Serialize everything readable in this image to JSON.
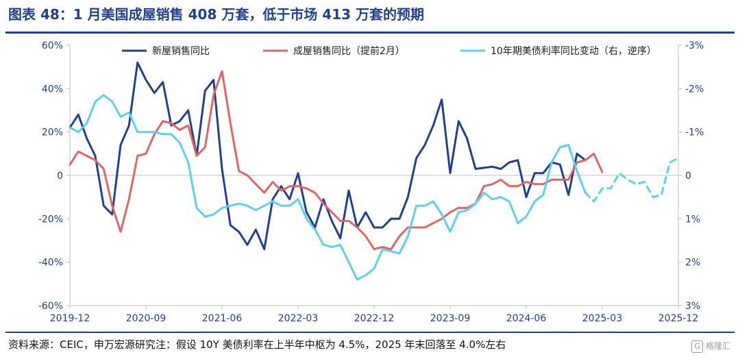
{
  "page": {
    "title": "图表 48：1 月美国成屋销售 408 万套，低于市场 413 万套的预期",
    "source": "资料来源：CEIC，申万宏源研究注：假设 10Y 美债利率在上半年中枢为 4.5%，2025 年末回落至 4.0%左右",
    "watermark_text": "格隆汇",
    "watermark_icon": "G-logo-icon"
  },
  "chart_data": {
    "type": "line",
    "title": "图表 48：1 月美国成屋销售 408 万套，低于市场 413 万套的预期",
    "x_start": "2019-12",
    "x_end": "2025-12",
    "x_tick_labels": [
      "2019-12",
      "2020-09",
      "2021-06",
      "2022-03",
      "2022-12",
      "2023-09",
      "2024-06",
      "2025-03",
      "2025-12"
    ],
    "y_left": {
      "min": -60,
      "max": 60,
      "ticks": [
        60,
        40,
        20,
        0,
        -20,
        -40,
        -60
      ],
      "tick_labels": [
        "60%",
        "40%",
        "20%",
        "0",
        "-20%",
        "-40%",
        "-60%"
      ]
    },
    "y_right": {
      "min": -3,
      "max": 3,
      "reversed": true,
      "ticks": [
        -3,
        -2,
        -1,
        0,
        1,
        2,
        3
      ],
      "tick_labels": [
        "-3%",
        "-2%",
        "-1%",
        "0",
        "1%",
        "2%",
        "3%"
      ]
    },
    "legend_position": "top",
    "grid": false,
    "series": [
      {
        "name": "新屋销售同比",
        "axis": "left",
        "color": "#1f3f8f",
        "dashed": false,
        "x": [
          "2019-12",
          "2020-01",
          "2020-02",
          "2020-03",
          "2020-04",
          "2020-05",
          "2020-06",
          "2020-07",
          "2020-08",
          "2020-09",
          "2020-10",
          "2020-11",
          "2020-12",
          "2021-01",
          "2021-02",
          "2021-03",
          "2021-04",
          "2021-05",
          "2021-06",
          "2021-07",
          "2021-08",
          "2021-09",
          "2021-10",
          "2021-11",
          "2021-12",
          "2022-01",
          "2022-02",
          "2022-03",
          "2022-04",
          "2022-05",
          "2022-06",
          "2022-07",
          "2022-08",
          "2022-09",
          "2022-10",
          "2022-11",
          "2022-12",
          "2023-01",
          "2023-02",
          "2023-03",
          "2023-04",
          "2023-05",
          "2023-06",
          "2023-07",
          "2023-08",
          "2023-09",
          "2023-10",
          "2023-11",
          "2023-12",
          "2024-01",
          "2024-02",
          "2024-03",
          "2024-04",
          "2024-05",
          "2024-06",
          "2024-07",
          "2024-08",
          "2024-09",
          "2024-10",
          "2024-11",
          "2024-12",
          "2025-01"
        ],
        "y": [
          22,
          28,
          17,
          9,
          -14,
          -18,
          14,
          23,
          52,
          44,
          38,
          43,
          23,
          25,
          30,
          9,
          39,
          44,
          3,
          -23,
          -26,
          -32,
          -25,
          -34,
          -11,
          -5,
          -11,
          1,
          -17,
          -24,
          -11,
          -21,
          -29,
          -7,
          -24,
          -17,
          -24,
          -24,
          -20,
          -20,
          -10,
          8,
          14,
          23,
          35,
          1,
          25,
          17,
          3,
          3.5,
          4,
          3,
          6,
          7,
          -10,
          1,
          1,
          6,
          5,
          -9,
          10,
          7
        ]
      },
      {
        "name": "成屋销售同比（提前2月）",
        "axis": "left",
        "color": "#e06666",
        "dashed": false,
        "x": [
          "2019-12",
          "2020-01",
          "2020-02",
          "2020-03",
          "2020-04",
          "2020-05",
          "2020-06",
          "2020-07",
          "2020-08",
          "2020-09",
          "2020-10",
          "2020-11",
          "2020-12",
          "2021-01",
          "2021-02",
          "2021-03",
          "2021-04",
          "2021-05",
          "2021-06",
          "2021-07",
          "2021-08",
          "2021-09",
          "2021-10",
          "2021-11",
          "2021-12",
          "2022-01",
          "2022-02",
          "2022-03",
          "2022-04",
          "2022-05",
          "2022-06",
          "2022-07",
          "2022-08",
          "2022-09",
          "2022-10",
          "2022-11",
          "2022-12",
          "2023-01",
          "2023-02",
          "2023-03",
          "2023-04",
          "2023-05",
          "2023-06",
          "2023-07",
          "2023-08",
          "2023-09",
          "2023-10",
          "2023-11",
          "2023-12",
          "2024-01",
          "2024-02",
          "2024-03",
          "2024-04",
          "2024-05",
          "2024-06",
          "2024-07",
          "2024-08",
          "2024-09",
          "2024-10",
          "2024-11",
          "2024-12",
          "2025-01",
          "2025-02",
          "2025-03"
        ],
        "y": [
          5,
          11,
          9,
          7,
          3,
          -14,
          -26,
          -11,
          9,
          10,
          19,
          25,
          24,
          21,
          23,
          9,
          13,
          37,
          48,
          24,
          2,
          0,
          -4,
          -8,
          -3,
          -7,
          -5,
          -5,
          -6,
          -8,
          -13,
          -17,
          -21,
          -21,
          -24,
          -28,
          -34,
          -33,
          -34,
          -28,
          -24,
          -24,
          -24,
          -22,
          -20,
          -17,
          -15,
          -15,
          -13,
          -5,
          -4,
          -2,
          -5,
          -5,
          -3,
          -4,
          -4,
          -2,
          -2,
          -2,
          6,
          7,
          10,
          1.5
        ]
      },
      {
        "name": "10年期美债利率同比变动（右，逆序）",
        "axis": "right",
        "color": "#5bd0f0",
        "dashed": false,
        "x": [
          "2019-12",
          "2020-01",
          "2020-02",
          "2020-03",
          "2020-04",
          "2020-05",
          "2020-06",
          "2020-07",
          "2020-08",
          "2020-09",
          "2020-10",
          "2020-11",
          "2020-12",
          "2021-01",
          "2021-02",
          "2021-03",
          "2021-04",
          "2021-05",
          "2021-06",
          "2021-07",
          "2021-08",
          "2021-09",
          "2021-10",
          "2021-11",
          "2021-12",
          "2022-01",
          "2022-02",
          "2022-03",
          "2022-04",
          "2022-05",
          "2022-06",
          "2022-07",
          "2022-08",
          "2022-09",
          "2022-10",
          "2022-11",
          "2022-12",
          "2023-01",
          "2023-02",
          "2023-03",
          "2023-04",
          "2023-05",
          "2023-06",
          "2023-07",
          "2023-08",
          "2023-09",
          "2023-10",
          "2023-11",
          "2023-12",
          "2024-01",
          "2024-02",
          "2024-03",
          "2024-04",
          "2024-05",
          "2024-06",
          "2024-07",
          "2024-08",
          "2024-09",
          "2024-10",
          "2024-11",
          "2024-12",
          "2025-01"
        ],
        "y": [
          -1.1,
          -1,
          -1.2,
          -1.7,
          -1.85,
          -1.7,
          -1.35,
          -1.45,
          -1,
          -1,
          -1,
          -0.95,
          -0.95,
          -0.75,
          -0.3,
          0.75,
          0.95,
          0.9,
          0.75,
          0.7,
          0.65,
          0.7,
          0.8,
          0.7,
          0.6,
          0.7,
          0.7,
          0.55,
          1,
          1.25,
          1.6,
          1.65,
          1.6,
          2,
          2.4,
          2.3,
          2.15,
          1.7,
          1.75,
          1.8,
          1.4,
          0.7,
          0.7,
          0.6,
          0.9,
          1.3,
          0.85,
          0.8,
          0.65,
          0.4,
          0.55,
          0.5,
          0.6,
          1.1,
          0.95,
          0.6,
          0.45,
          -0.3,
          -0.65,
          -0.7,
          -0.1,
          0.4
        ]
      },
      {
        "name": "10年期美债利率同比变动（右，逆序）—假设",
        "axis": "right",
        "color": "#5bd0f0",
        "dashed": true,
        "legend": false,
        "x": [
          "2025-01",
          "2025-02",
          "2025-03",
          "2025-04",
          "2025-05",
          "2025-06",
          "2025-07",
          "2025-08",
          "2025-09",
          "2025-10",
          "2025-11",
          "2025-12"
        ],
        "y": [
          0.4,
          0.6,
          0.3,
          0.3,
          -0.05,
          0.1,
          0.2,
          0.15,
          0.5,
          0.45,
          -0.3,
          -0.4
        ]
      }
    ]
  }
}
